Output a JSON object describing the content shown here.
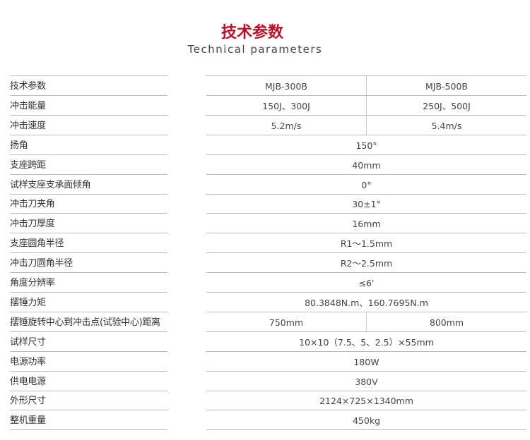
{
  "header": {
    "title": "技术参数",
    "subtitle": "Technical parameters"
  },
  "table": {
    "rows": [
      {
        "label": "技术参数",
        "values": [
          "MJB-300B",
          "MJB-500B"
        ]
      },
      {
        "label": "冲击能量",
        "values": [
          "150J、300J",
          "250J、500J"
        ]
      },
      {
        "label": "冲击速度",
        "values": [
          "5.2m/s",
          "5.4m/s"
        ]
      },
      {
        "label": "扬角",
        "values": [
          "150°"
        ]
      },
      {
        "label": "支座跨距",
        "values": [
          "40mm"
        ]
      },
      {
        "label": "试样支座支承面倾角",
        "values": [
          "0°"
        ]
      },
      {
        "label": "冲击刀夹角",
        "values": [
          "30±1°"
        ]
      },
      {
        "label": "冲击刀厚度",
        "values": [
          "16mm"
        ]
      },
      {
        "label": "支座圆角半径",
        "values": [
          "R1～1.5mm"
        ]
      },
      {
        "label": "冲击刀圆角半径",
        "values": [
          "R2～2.5mm"
        ]
      },
      {
        "label": "角度分辨率",
        "values": [
          "≤6'"
        ]
      },
      {
        "label": "摆锤力矩",
        "values": [
          "80.3848N.m、160.7695N.m"
        ]
      },
      {
        "label": "摆锤旋转中心到冲击点(试验中心)距离",
        "values": [
          "750mm",
          "800mm"
        ]
      },
      {
        "label": "试样尺寸",
        "values": [
          "10×10（7.5、5、2.5）×55mm"
        ]
      },
      {
        "label": "电源功率",
        "values": [
          "180W"
        ]
      },
      {
        "label": "供电电源",
        "values": [
          "380V"
        ]
      },
      {
        "label": "外形尺寸",
        "values": [
          "2124×725×1340mm"
        ]
      },
      {
        "label": "整机重量",
        "values": [
          "450kg"
        ]
      }
    ]
  }
}
